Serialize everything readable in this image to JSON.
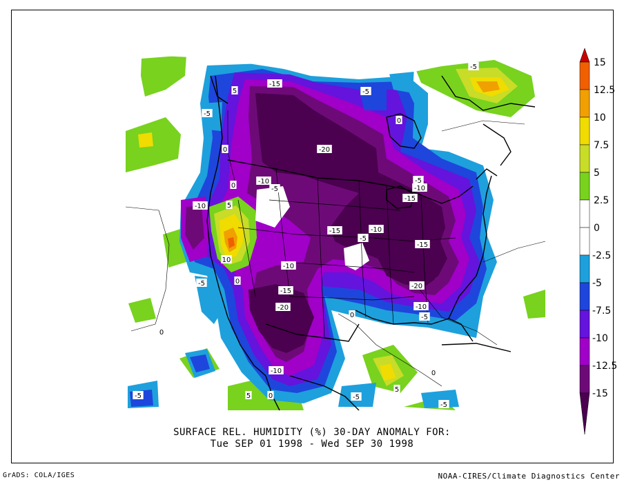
{
  "title_line1": "SURFACE REL. HUMIDITY (%)   30-DAY ANOMALY FOR:",
  "title_line2": "Tue SEP 01 1998 - Wed SEP 30 1998",
  "credit_left": "GrADS: COLA/IGES",
  "credit_right": "NOAA-CIRES/Climate Diagnostics Center",
  "colorbar": {
    "levels": [
      15,
      12.5,
      10,
      7.5,
      5,
      2.5,
      0,
      -2.5,
      -5,
      -7.5,
      -10,
      -12.5,
      -15
    ],
    "labels": [
      "15",
      "12.5",
      "10",
      "7.5",
      "5",
      "2.5",
      "0",
      "-2.5",
      "-5",
      "-7.5",
      "-10",
      "-12.5",
      "-15"
    ],
    "colors": [
      "#c80000",
      "#f06000",
      "#f0a000",
      "#f0dc00",
      "#c8dc28",
      "#78d21e",
      "#ffffff",
      "#ffffff",
      "#1ea0dc",
      "#1e46dc",
      "#6414dc",
      "#a000c8",
      "#6e0a78",
      "#4b0050"
    ]
  },
  "contour_labels": [
    {
      "text": "-15"
    },
    {
      "text": "-5"
    },
    {
      "text": "5"
    },
    {
      "text": "-5"
    },
    {
      "text": "0"
    },
    {
      "text": "-5"
    },
    {
      "text": "0"
    },
    {
      "text": "-20"
    },
    {
      "text": "-10"
    },
    {
      "text": "-5"
    },
    {
      "text": "-5"
    },
    {
      "text": "-10"
    },
    {
      "text": "-15"
    },
    {
      "text": "-10"
    },
    {
      "text": "5"
    },
    {
      "text": "-15"
    },
    {
      "text": "-10"
    },
    {
      "text": "-5"
    },
    {
      "text": "-15"
    },
    {
      "text": "10"
    },
    {
      "text": "-10"
    },
    {
      "text": "-5"
    },
    {
      "text": "0"
    },
    {
      "text": "-15"
    },
    {
      "text": "-20"
    },
    {
      "text": "-20"
    },
    {
      "text": "-10"
    },
    {
      "text": "-5"
    },
    {
      "text": "0"
    },
    {
      "text": "0"
    },
    {
      "text": "0"
    },
    {
      "text": "-10"
    },
    {
      "text": "-5"
    },
    {
      "text": "5"
    },
    {
      "text": "0"
    },
    {
      "text": "-5"
    },
    {
      "text": "5"
    },
    {
      "text": "-5"
    },
    {
      "text": "0"
    }
  ]
}
